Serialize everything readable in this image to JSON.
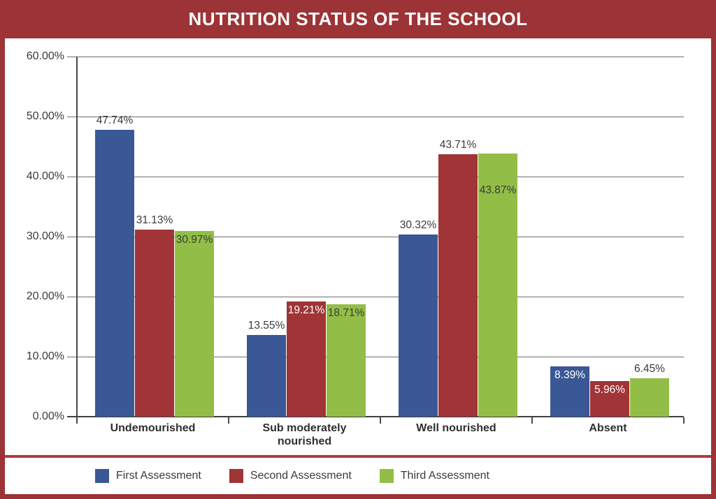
{
  "chart_data": {
    "type": "bar",
    "title": "NUTRITION STATUS OF THE SCHOOL",
    "xlabel": "",
    "ylabel": "",
    "ylim": [
      0,
      60
    ],
    "grid": true,
    "legend_position": "bottom",
    "categories": [
      "Undemourished",
      "Sub moderately nourished",
      "Well nourished",
      "Absent"
    ],
    "yticks": [
      {
        "value": 0,
        "label": "0.00%"
      },
      {
        "value": 10,
        "label": "10.00%"
      },
      {
        "value": 20,
        "label": "20.00%"
      },
      {
        "value": 30,
        "label": "30.00%"
      },
      {
        "value": 40,
        "label": "40.00%"
      },
      {
        "value": 50,
        "label": "50.00%"
      },
      {
        "value": 60,
        "label": "60.00%"
      }
    ],
    "series": [
      {
        "name": "First Assessment",
        "color": "#3A5895",
        "values": [
          47.74,
          13.55,
          30.32,
          8.39
        ],
        "labels": [
          "47.74%",
          "13.55%",
          "30.32%",
          "8.39%"
        ],
        "label_placement": [
          "above",
          "above",
          "above",
          "inside"
        ],
        "label_color": [
          "dark",
          "dark",
          "dark",
          "white"
        ]
      },
      {
        "name": "Second Assessment",
        "color": "#A03436",
        "values": [
          31.13,
          19.21,
          43.71,
          5.96
        ],
        "labels": [
          "31.13%",
          "19.21%",
          "43.71%",
          "5.96%"
        ],
        "label_placement": [
          "above",
          "inside",
          "above",
          "inside"
        ],
        "label_color": [
          "dark",
          "white",
          "dark",
          "white"
        ]
      },
      {
        "name": "Third Assessment",
        "color": "#92BE47",
        "values": [
          30.97,
          18.71,
          43.87,
          6.45
        ],
        "labels": [
          "30.97%",
          "18.71%",
          "43.87%",
          "6.45%"
        ],
        "label_placement": [
          "inside",
          "inside",
          "inside-low",
          "above"
        ],
        "label_color": [
          "dark",
          "dark",
          "dark",
          "dark"
        ]
      }
    ]
  },
  "colors": {
    "frame_red": "#9C3336",
    "divider_red": "#B33C3F",
    "panel_white": "#FFFFFF",
    "gridline_gray": "#6E6E6E",
    "axis_gray": "#4A4A4A",
    "text_dark": "#3A3A3A",
    "title_white": "#FFFFFF"
  }
}
